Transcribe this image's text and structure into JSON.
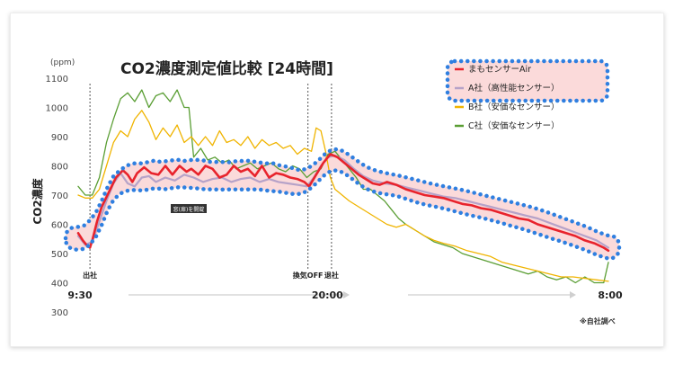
{
  "chart_data": {
    "type": "line",
    "title": "CO2濃度測定値比較 [24時間]",
    "ylabel": "CO2濃度",
    "yunit": "(ppm)",
    "ylim": [
      300,
      1100
    ],
    "yticks": [
      300,
      400,
      500,
      600,
      700,
      800,
      900,
      1000,
      1100
    ],
    "xlim": [
      9.5,
      32.0
    ],
    "time_labels": [
      {
        "x": 9.5,
        "label": "9:30"
      },
      {
        "x": 20.0,
        "label": "20:00"
      },
      {
        "x": 32.0,
        "label": "8:00"
      }
    ],
    "events": [
      {
        "x": 10.0,
        "label": "出社"
      },
      {
        "x": 19.25,
        "label": "換気OFF"
      },
      {
        "x": 20.25,
        "label": "退社"
      }
    ],
    "inline_label": "窓(扉)を開錠",
    "footnote": "※自社調べ",
    "legend_position": "top-right",
    "highlighted_series": [
      "まもセンサーAir",
      "A社（高性能センサー）"
    ],
    "highlight_color": "#2f7fe0",
    "band_color": "#fbdada",
    "series": [
      {
        "name": "まもセンサーAir",
        "color": "#e8232c",
        "x": [
          9.5,
          9.7,
          9.9,
          10.0,
          10.1,
          10.3,
          10.5,
          10.8,
          11.1,
          11.4,
          11.6,
          11.8,
          12.0,
          12.3,
          12.6,
          12.9,
          13.2,
          13.5,
          13.8,
          14.1,
          14.3,
          14.6,
          14.9,
          15.2,
          15.5,
          15.8,
          16.1,
          16.4,
          16.7,
          17.0,
          17.3,
          17.6,
          17.9,
          18.2,
          18.5,
          18.8,
          19.1,
          19.3,
          19.6,
          19.9,
          20.2,
          20.5,
          20.8,
          21.1,
          21.4,
          21.7,
          22.0,
          22.3,
          22.6,
          23.0,
          23.4,
          23.8,
          24.2,
          24.6,
          25.0,
          25.4,
          25.8,
          26.2,
          26.6,
          27.0,
          27.4,
          27.8,
          28.2,
          28.6,
          29.0,
          29.4,
          29.8,
          30.2,
          30.6,
          31.0,
          31.4,
          31.8,
          32.0
        ],
        "y": [
          570,
          545,
          525,
          520,
          545,
          610,
          660,
          710,
          760,
          785,
          770,
          745,
          775,
          795,
          775,
          770,
          800,
          770,
          800,
          780,
          790,
          770,
          800,
          790,
          760,
          770,
          800,
          780,
          790,
          765,
          800,
          760,
          775,
          770,
          760,
          755,
          745,
          730,
          770,
          810,
          840,
          830,
          810,
          790,
          770,
          755,
          740,
          735,
          745,
          735,
          720,
          710,
          700,
          695,
          690,
          680,
          670,
          665,
          655,
          650,
          640,
          630,
          620,
          615,
          600,
          590,
          580,
          570,
          560,
          545,
          535,
          520,
          510
        ]
      },
      {
        "name": "A社（高性能センサー）",
        "color": "#b6a2c8",
        "x": [
          9.5,
          9.8,
          10.1,
          10.4,
          10.7,
          11.0,
          11.3,
          11.6,
          11.9,
          12.2,
          12.5,
          12.8,
          13.2,
          13.6,
          14.0,
          14.4,
          14.8,
          15.2,
          15.6,
          16.0,
          16.4,
          16.8,
          17.2,
          17.6,
          18.0,
          18.4,
          18.8,
          19.2,
          19.5,
          19.8,
          20.1,
          20.4,
          20.8,
          21.2,
          21.6,
          22.0,
          22.5,
          23.0,
          23.5,
          24.0,
          24.5,
          25.0,
          25.5,
          26.0,
          26.5,
          27.0,
          27.5,
          28.0,
          28.5,
          29.0,
          29.5,
          30.0,
          30.5,
          31.0,
          31.5,
          32.0
        ],
        "y": [
          560,
          530,
          540,
          610,
          680,
          740,
          775,
          740,
          730,
          760,
          765,
          745,
          760,
          750,
          770,
          760,
          745,
          755,
          760,
          745,
          755,
          760,
          745,
          755,
          745,
          740,
          735,
          730,
          760,
          800,
          830,
          835,
          820,
          790,
          765,
          750,
          740,
          735,
          725,
          715,
          705,
          695,
          690,
          680,
          670,
          660,
          650,
          640,
          630,
          620,
          605,
          590,
          575,
          560,
          545,
          520
        ]
      },
      {
        "name": "B社（安価なセンサー）",
        "color": "#f0b400",
        "x": [
          9.5,
          9.8,
          10.1,
          10.4,
          10.7,
          11.0,
          11.3,
          11.6,
          11.9,
          12.2,
          12.5,
          12.8,
          13.1,
          13.4,
          13.7,
          14.0,
          14.3,
          14.6,
          14.9,
          15.2,
          15.5,
          15.8,
          16.1,
          16.4,
          16.7,
          17.0,
          17.3,
          17.6,
          17.9,
          18.2,
          18.5,
          18.8,
          19.1,
          19.4,
          19.6,
          19.8,
          20.0,
          20.2,
          20.4,
          20.7,
          21.0,
          21.4,
          21.8,
          22.2,
          22.6,
          23.0,
          23.4,
          23.8,
          24.2,
          24.6,
          25.0,
          25.5,
          26.0,
          26.5,
          27.0,
          27.5,
          28.0,
          28.5,
          29.0,
          29.5,
          30.0,
          30.5,
          31.0,
          31.5,
          32.0
        ],
        "y": [
          700,
          690,
          690,
          720,
          800,
          880,
          920,
          900,
          960,
          990,
          950,
          890,
          930,
          900,
          940,
          880,
          900,
          870,
          900,
          870,
          920,
          880,
          890,
          870,
          900,
          860,
          890,
          870,
          880,
          860,
          870,
          840,
          860,
          850,
          930,
          920,
          850,
          760,
          720,
          700,
          680,
          660,
          640,
          620,
          600,
          590,
          600,
          580,
          560,
          545,
          535,
          525,
          510,
          500,
          490,
          470,
          460,
          450,
          440,
          430,
          420,
          420,
          415,
          410,
          405
        ]
      },
      {
        "name": "C社（安価なセンサー）",
        "color": "#5a9e34",
        "x": [
          9.5,
          9.8,
          10.1,
          10.4,
          10.7,
          11.0,
          11.3,
          11.6,
          11.9,
          12.2,
          12.5,
          12.8,
          13.1,
          13.4,
          13.7,
          14.0,
          14.2,
          14.4,
          14.7,
          15.0,
          15.3,
          15.6,
          15.9,
          16.2,
          16.5,
          16.8,
          17.1,
          17.4,
          17.7,
          18.0,
          18.3,
          18.6,
          18.9,
          19.2,
          19.5,
          19.8,
          20.1,
          20.4,
          20.7,
          21.0,
          21.3,
          21.6,
          21.9,
          22.2,
          22.5,
          22.8,
          23.1,
          23.4,
          23.8,
          24.2,
          24.6,
          25.0,
          25.4,
          25.8,
          26.2,
          26.6,
          27.0,
          27.4,
          27.8,
          28.2,
          28.6,
          29.0,
          29.4,
          29.8,
          30.2,
          30.6,
          31.0,
          31.4,
          31.8,
          32.0
        ],
        "y": [
          730,
          700,
          700,
          760,
          880,
          960,
          1030,
          1050,
          1020,
          1060,
          1000,
          1040,
          1050,
          1020,
          1060,
          1000,
          1000,
          830,
          860,
          820,
          830,
          810,
          820,
          790,
          800,
          810,
          790,
          800,
          810,
          790,
          780,
          800,
          790,
          760,
          780,
          790,
          840,
          850,
          820,
          790,
          760,
          720,
          720,
          700,
          680,
          650,
          620,
          600,
          580,
          560,
          540,
          530,
          520,
          500,
          490,
          480,
          470,
          460,
          450,
          440,
          430,
          440,
          420,
          410,
          420,
          400,
          420,
          400,
          400,
          470
        ]
      }
    ]
  }
}
